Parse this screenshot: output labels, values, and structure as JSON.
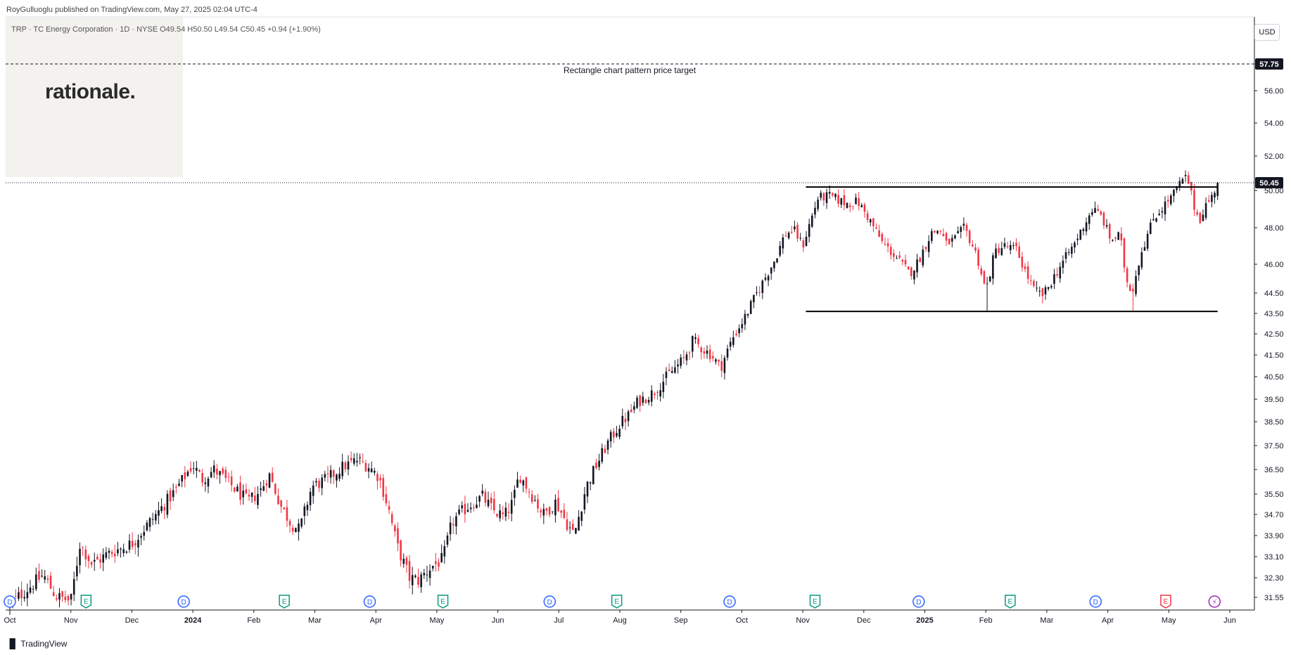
{
  "header": {
    "published": "RoyGulluoglu published on TradingView.com, May 27, 2025 02:04 UTC-4",
    "symbol_line": "TRP · TC Energy Corporation · 1D · NYSE  O49.54  H50.50  L49.54  C50.45  +0.94 (+1.90%)"
  },
  "logo": {
    "text": "rationale."
  },
  "currency_button": "USD",
  "footer": {
    "brand": "TradingView",
    "icon": "tradingview-logo-icon"
  },
  "colors": {
    "up": "#131722",
    "down": "#f23645",
    "earnings": "#089981",
    "dividend": "#2962ff",
    "earnings_next": "#f23645"
  },
  "chart_data": {
    "type": "candlestick",
    "title": "",
    "price_levels": [
      31.55,
      32.3,
      33.1,
      33.9,
      34.7,
      35.5,
      36.5,
      37.5,
      38.5,
      39.5,
      40.5,
      41.5,
      42.5,
      43.5,
      44.5,
      46.0,
      48.0,
      50.0,
      52.0,
      54.0,
      56.0
    ],
    "price_labels": [
      "31.55",
      "32.30",
      "33.10",
      "33.90",
      "34.70",
      "35.50",
      "36.50",
      "37.50",
      "38.50",
      "39.50",
      "40.50",
      "41.50",
      "42.50",
      "43.50",
      "44.50",
      "46.00",
      "48.00",
      "50.00",
      "52.00",
      "54.00",
      "56.00"
    ],
    "x_labels": [
      {
        "label": "Oct",
        "bold": false
      },
      {
        "label": "Nov",
        "bold": false
      },
      {
        "label": "Dec",
        "bold": false
      },
      {
        "label": "2024",
        "bold": true
      },
      {
        "label": "Feb",
        "bold": false
      },
      {
        "label": "Mar",
        "bold": false
      },
      {
        "label": "Apr",
        "bold": false
      },
      {
        "label": "May",
        "bold": false
      },
      {
        "label": "Jun",
        "bold": false
      },
      {
        "label": "Jul",
        "bold": false
      },
      {
        "label": "Aug",
        "bold": false
      },
      {
        "label": "Sep",
        "bold": false
      },
      {
        "label": "Oct",
        "bold": false
      },
      {
        "label": "Nov",
        "bold": false
      },
      {
        "label": "Dec",
        "bold": false
      },
      {
        "label": "2025",
        "bold": true
      },
      {
        "label": "Feb",
        "bold": false
      },
      {
        "label": "Mar",
        "bold": false
      },
      {
        "label": "Apr",
        "bold": false
      },
      {
        "label": "May",
        "bold": false
      },
      {
        "label": "Jun",
        "bold": false
      }
    ],
    "x_label_months": [
      0,
      1,
      2,
      3,
      4,
      5,
      6,
      7,
      8,
      9,
      10,
      11,
      12,
      13,
      14,
      15,
      16,
      17,
      18,
      19,
      20
    ],
    "last_price": 50.45,
    "last_price_label": "50.45",
    "target_price": 57.75,
    "target_price_label": "57.75",
    "target_annotation": "Rectangle chart pattern price target",
    "rectangle": {
      "start_month": 13.05,
      "end_month": 19.8,
      "resistance": 50.2,
      "support": 43.6
    },
    "events": [
      {
        "type": "D",
        "month": 0.0
      },
      {
        "type": "E",
        "month": 1.25
      },
      {
        "type": "D",
        "month": 2.85
      },
      {
        "type": "E",
        "month": 4.5
      },
      {
        "type": "D",
        "month": 5.9
      },
      {
        "type": "E",
        "month": 7.1
      },
      {
        "type": "D",
        "month": 8.85
      },
      {
        "type": "E",
        "month": 9.95
      },
      {
        "type": "D",
        "month": 11.8
      },
      {
        "type": "E",
        "month": 13.2
      },
      {
        "type": "D",
        "month": 14.9
      },
      {
        "type": "E",
        "month": 16.4
      },
      {
        "type": "D",
        "month": 17.8
      },
      {
        "type": "E_next",
        "month": 18.95
      },
      {
        "type": "flash",
        "month": 19.75
      }
    ],
    "path_points": [
      [
        0.0,
        31.3
      ],
      [
        0.3,
        31.9
      ],
      [
        0.55,
        32.4
      ],
      [
        0.75,
        31.6
      ],
      [
        1.0,
        31.4
      ],
      [
        1.15,
        33.6
      ],
      [
        1.35,
        32.8
      ],
      [
        1.6,
        33.2
      ],
      [
        2.0,
        33.6
      ],
      [
        2.4,
        34.7
      ],
      [
        2.7,
        35.6
      ],
      [
        3.0,
        36.7
      ],
      [
        3.15,
        36.1
      ],
      [
        3.35,
        36.5
      ],
      [
        3.65,
        35.8
      ],
      [
        3.9,
        35.2
      ],
      [
        4.1,
        35.6
      ],
      [
        4.25,
        36.3
      ],
      [
        4.45,
        35.0
      ],
      [
        4.6,
        34.4
      ],
      [
        4.75,
        34.1
      ],
      [
        4.95,
        35.8
      ],
      [
        5.2,
        36.1
      ],
      [
        5.45,
        36.6
      ],
      [
        5.7,
        36.9
      ],
      [
        5.9,
        36.6
      ],
      [
        6.05,
        36.2
      ],
      [
        6.2,
        35.0
      ],
      [
        6.35,
        33.5
      ],
      [
        6.55,
        32.3
      ],
      [
        6.7,
        32.2
      ],
      [
        6.9,
        32.7
      ],
      [
        7.1,
        33.0
      ],
      [
        7.25,
        34.4
      ],
      [
        7.5,
        35.0
      ],
      [
        7.75,
        35.4
      ],
      [
        7.9,
        34.9
      ],
      [
        8.1,
        34.6
      ],
      [
        8.25,
        35.2
      ],
      [
        8.35,
        36.3
      ],
      [
        8.55,
        35.5
      ],
      [
        8.75,
        34.7
      ],
      [
        8.95,
        35.2
      ],
      [
        9.1,
        34.5
      ],
      [
        9.25,
        33.9
      ],
      [
        9.45,
        35.8
      ],
      [
        9.6,
        36.6
      ],
      [
        9.8,
        37.6
      ],
      [
        10.0,
        38.4
      ],
      [
        10.15,
        38.8
      ],
      [
        10.3,
        39.4
      ],
      [
        10.55,
        39.8
      ],
      [
        10.8,
        40.6
      ],
      [
        11.05,
        41.3
      ],
      [
        11.2,
        42.2
      ],
      [
        11.35,
        41.8
      ],
      [
        11.5,
        41.5
      ],
      [
        11.65,
        40.9
      ],
      [
        11.85,
        42.3
      ],
      [
        12.05,
        43.3
      ],
      [
        12.2,
        44.2
      ],
      [
        12.4,
        45.4
      ],
      [
        12.55,
        46.3
      ],
      [
        12.7,
        47.6
      ],
      [
        12.85,
        47.9
      ],
      [
        13.0,
        47.0
      ],
      [
        13.1,
        48.1
      ],
      [
        13.25,
        49.6
      ],
      [
        13.45,
        49.7
      ],
      [
        13.7,
        49.3
      ],
      [
        13.9,
        49.4
      ],
      [
        14.1,
        48.4
      ],
      [
        14.3,
        47.2
      ],
      [
        14.55,
        46.3
      ],
      [
        14.75,
        45.5
      ],
      [
        14.9,
        46.2
      ],
      [
        15.1,
        47.7
      ],
      [
        15.25,
        47.9
      ],
      [
        15.35,
        47.1
      ],
      [
        15.5,
        47.4
      ],
      [
        15.65,
        48.0
      ],
      [
        15.85,
        46.5
      ],
      [
        16.0,
        44.6
      ],
      [
        16.15,
        46.7
      ],
      [
        16.3,
        47.0
      ],
      [
        16.5,
        46.8
      ],
      [
        16.65,
        45.6
      ],
      [
        16.8,
        44.6
      ],
      [
        16.95,
        44.4
      ],
      [
        17.2,
        45.8
      ],
      [
        17.45,
        47.1
      ],
      [
        17.6,
        48.1
      ],
      [
        17.75,
        49.0
      ],
      [
        17.9,
        48.6
      ],
      [
        18.05,
        47.3
      ],
      [
        18.2,
        47.6
      ],
      [
        18.3,
        45.2
      ],
      [
        18.4,
        44.6
      ],
      [
        18.55,
        46.7
      ],
      [
        18.75,
        48.5
      ],
      [
        18.95,
        49.3
      ],
      [
        19.1,
        49.9
      ],
      [
        19.2,
        50.5
      ],
      [
        19.3,
        50.8
      ],
      [
        19.4,
        49.3
      ],
      [
        19.5,
        48.4
      ],
      [
        19.6,
        49.2
      ],
      [
        19.7,
        49.6
      ],
      [
        19.8,
        50.45
      ]
    ],
    "special_points": [
      [
        16.0,
        43.6
      ],
      [
        16.95,
        44.0
      ],
      [
        18.4,
        43.6
      ],
      [
        13.45,
        50.3
      ],
      [
        19.3,
        51.1
      ]
    ]
  }
}
